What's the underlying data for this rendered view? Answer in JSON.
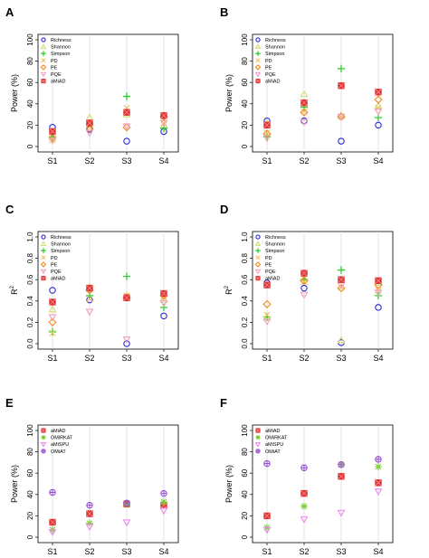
{
  "colors": {
    "Richness": "#2b2bd6",
    "Shannon": "#d8d870",
    "Simpson": "#2fcf2f",
    "PD": "#f0c060",
    "PE": "#f08a1c",
    "PQE": "#f0a0c0",
    "aMiAD": "#e03030",
    "OMiRKAT": "#7acc30",
    "aMiSPU": "#ee88ee",
    "OMiAT": "#9a50d0"
  },
  "chart_data": [
    {
      "panel": "A",
      "type": "scatter",
      "ylabel": "Power (%)",
      "ylim": [
        0,
        100
      ],
      "yticks": [
        0,
        20,
        40,
        60,
        80,
        100
      ],
      "categories": [
        "S1",
        "S2",
        "S3",
        "S4"
      ],
      "legend_position": "top-left",
      "series": [
        {
          "name": "Richness",
          "marker": "circle",
          "values": [
            18,
            16,
            5,
            14
          ]
        },
        {
          "name": "Shannon",
          "marker": "triangle-up",
          "values": [
            8,
            27,
            30,
            20
          ]
        },
        {
          "name": "Simpson",
          "marker": "plus",
          "values": [
            9,
            21,
            47,
            17
          ]
        },
        {
          "name": "PD",
          "marker": "cross",
          "values": [
            6,
            18,
            36,
            22
          ]
        },
        {
          "name": "PE",
          "marker": "diamond",
          "values": [
            8,
            17,
            18,
            28
          ]
        },
        {
          "name": "PQE",
          "marker": "triangle-down",
          "values": [
            6,
            13,
            19,
            22
          ]
        },
        {
          "name": "aMiAD",
          "marker": "square",
          "values": [
            14,
            22,
            32,
            29
          ]
        }
      ]
    },
    {
      "panel": "B",
      "type": "scatter",
      "ylabel": "Power (%)",
      "ylim": [
        0,
        100
      ],
      "yticks": [
        0,
        20,
        40,
        60,
        80,
        100
      ],
      "categories": [
        "S1",
        "S2",
        "S3",
        "S4"
      ],
      "legend_position": "top-left",
      "series": [
        {
          "name": "Richness",
          "marker": "circle",
          "values": [
            24,
            24,
            5,
            20
          ]
        },
        {
          "name": "Shannon",
          "marker": "triangle-up",
          "values": [
            22,
            49,
            29,
            38
          ]
        },
        {
          "name": "Simpson",
          "marker": "plus",
          "values": [
            9,
            37,
            73,
            27
          ]
        },
        {
          "name": "PD",
          "marker": "cross",
          "values": [
            13,
            33,
            28,
            36
          ]
        },
        {
          "name": "PE",
          "marker": "diamond",
          "values": [
            12,
            32,
            28,
            44
          ]
        },
        {
          "name": "PQE",
          "marker": "triangle-down",
          "values": [
            8,
            23,
            28,
            33
          ]
        },
        {
          "name": "aMiAD",
          "marker": "square",
          "values": [
            20,
            41,
            57,
            51
          ]
        }
      ]
    },
    {
      "panel": "C",
      "type": "scatter",
      "ylabel": "R²",
      "ylim": [
        0,
        1
      ],
      "yticks": [
        "0.0",
        "0.2",
        "0.4",
        "0.6",
        "0.8",
        "1.0"
      ],
      "categories": [
        "S1",
        "S2",
        "S3",
        "S4"
      ],
      "legend_position": "top-left",
      "series": [
        {
          "name": "Richness",
          "marker": "circle",
          "values": [
            0.5,
            0.41,
            0.0,
            0.26
          ]
        },
        {
          "name": "Shannon",
          "marker": "triangle-up",
          "values": [
            0.32,
            0.53,
            0.45,
            0.41
          ]
        },
        {
          "name": "Simpson",
          "marker": "plus",
          "values": [
            0.11,
            0.45,
            0.63,
            0.34
          ]
        },
        {
          "name": "PD",
          "marker": "cross",
          "values": [
            0.1,
            0.42,
            0.45,
            0.44
          ]
        },
        {
          "name": "PE",
          "marker": "diamond",
          "values": [
            0.2,
            0.5,
            0.43,
            0.45
          ]
        },
        {
          "name": "PQE",
          "marker": "triangle-down",
          "values": [
            0.25,
            0.3,
            0.04,
            0.38
          ]
        },
        {
          "name": "aMiAD",
          "marker": "square",
          "values": [
            0.39,
            0.52,
            0.43,
            0.47
          ]
        }
      ]
    },
    {
      "panel": "D",
      "type": "scatter",
      "ylabel": "R²",
      "ylim": [
        0,
        1
      ],
      "yticks": [
        "0.0",
        "0.2",
        "0.4",
        "0.6",
        "0.8",
        "1.0"
      ],
      "categories": [
        "S1",
        "S2",
        "S3",
        "S4"
      ],
      "legend_position": "top-left",
      "series": [
        {
          "name": "Richness",
          "marker": "circle",
          "values": [
            0.57,
            0.52,
            0.01,
            0.34
          ]
        },
        {
          "name": "Shannon",
          "marker": "triangle-up",
          "values": [
            0.24,
            0.61,
            0.03,
            0.57
          ]
        },
        {
          "name": "Simpson",
          "marker": "plus",
          "values": [
            0.25,
            0.6,
            0.69,
            0.45
          ]
        },
        {
          "name": "PD",
          "marker": "cross",
          "values": [
            0.27,
            0.58,
            0.53,
            0.5
          ]
        },
        {
          "name": "PE",
          "marker": "diamond",
          "values": [
            0.37,
            0.59,
            0.52,
            0.55
          ]
        },
        {
          "name": "PQE",
          "marker": "triangle-down",
          "values": [
            0.21,
            0.46,
            0.55,
            0.48
          ]
        },
        {
          "name": "aMiAD",
          "marker": "square",
          "values": [
            0.55,
            0.66,
            0.6,
            0.59
          ]
        }
      ]
    },
    {
      "panel": "E",
      "type": "scatter",
      "ylabel": "Power (%)",
      "ylim": [
        0,
        100
      ],
      "yticks": [
        0,
        20,
        40,
        60,
        80,
        100
      ],
      "categories": [
        "S1",
        "S2",
        "S3",
        "S4"
      ],
      "legend_position": "top-left",
      "series": [
        {
          "name": "aMiAD",
          "marker": "square",
          "values": [
            14,
            22,
            31,
            30
          ]
        },
        {
          "name": "OMiRKAT",
          "marker": "asterisk",
          "values": [
            7,
            13,
            31,
            33
          ]
        },
        {
          "name": "aMiSPU",
          "marker": "triangle-down",
          "values": [
            5,
            10,
            14,
            25
          ]
        },
        {
          "name": "OMiAT",
          "marker": "circle-plus",
          "values": [
            42,
            30,
            32,
            41
          ]
        }
      ]
    },
    {
      "panel": "F",
      "type": "scatter",
      "ylabel": "Power (%)",
      "ylim": [
        0,
        100
      ],
      "yticks": [
        0,
        20,
        40,
        60,
        80,
        100
      ],
      "categories": [
        "S1",
        "S2",
        "S3",
        "S4"
      ],
      "legend_position": "top-left",
      "series": [
        {
          "name": "aMiAD",
          "marker": "square",
          "values": [
            20,
            41,
            57,
            51
          ]
        },
        {
          "name": "OMiRKAT",
          "marker": "asterisk",
          "values": [
            9,
            29,
            68,
            66
          ]
        },
        {
          "name": "aMiSPU",
          "marker": "triangle-down",
          "values": [
            7,
            17,
            23,
            43
          ]
        },
        {
          "name": "OMiAT",
          "marker": "circle-plus",
          "values": [
            69,
            65,
            68,
            73
          ]
        }
      ]
    }
  ]
}
